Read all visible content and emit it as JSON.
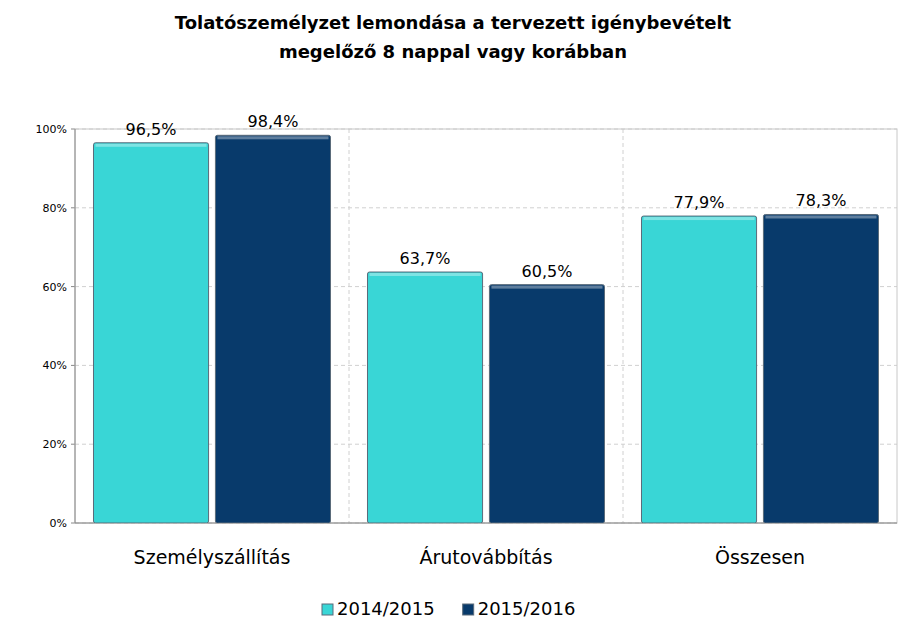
{
  "chart_data": {
    "type": "bar",
    "title": "Tolatószemélyzet lemondása a tervezett igénybevételt megelőző 8 nappal vagy korábban",
    "categories": [
      "Személyszállítás",
      "Árutovábbítás",
      "Összesen"
    ],
    "series": [
      {
        "name": "2014/2015",
        "color": "#39d6d6",
        "values": [
          96.5,
          63.7,
          77.9
        ],
        "value_labels": [
          "96,5%",
          "63,7%",
          "77,9%"
        ]
      },
      {
        "name": "2015/2016",
        "color": "#083a6b",
        "values": [
          98.4,
          60.5,
          78.3
        ],
        "value_labels": [
          "98,4%",
          "60,5%",
          "78,3%"
        ]
      }
    ],
    "ylim": [
      0,
      100
    ],
    "yticks": [
      {
        "value": 0,
        "label": "0%"
      },
      {
        "value": 20,
        "label": "20%"
      },
      {
        "value": 40,
        "label": "40%"
      },
      {
        "value": 60,
        "label": "60%"
      },
      {
        "value": 80,
        "label": "80%"
      },
      {
        "value": 100,
        "label": "100%"
      }
    ],
    "grid": true,
    "data_labels": true,
    "legend": "bottom"
  }
}
